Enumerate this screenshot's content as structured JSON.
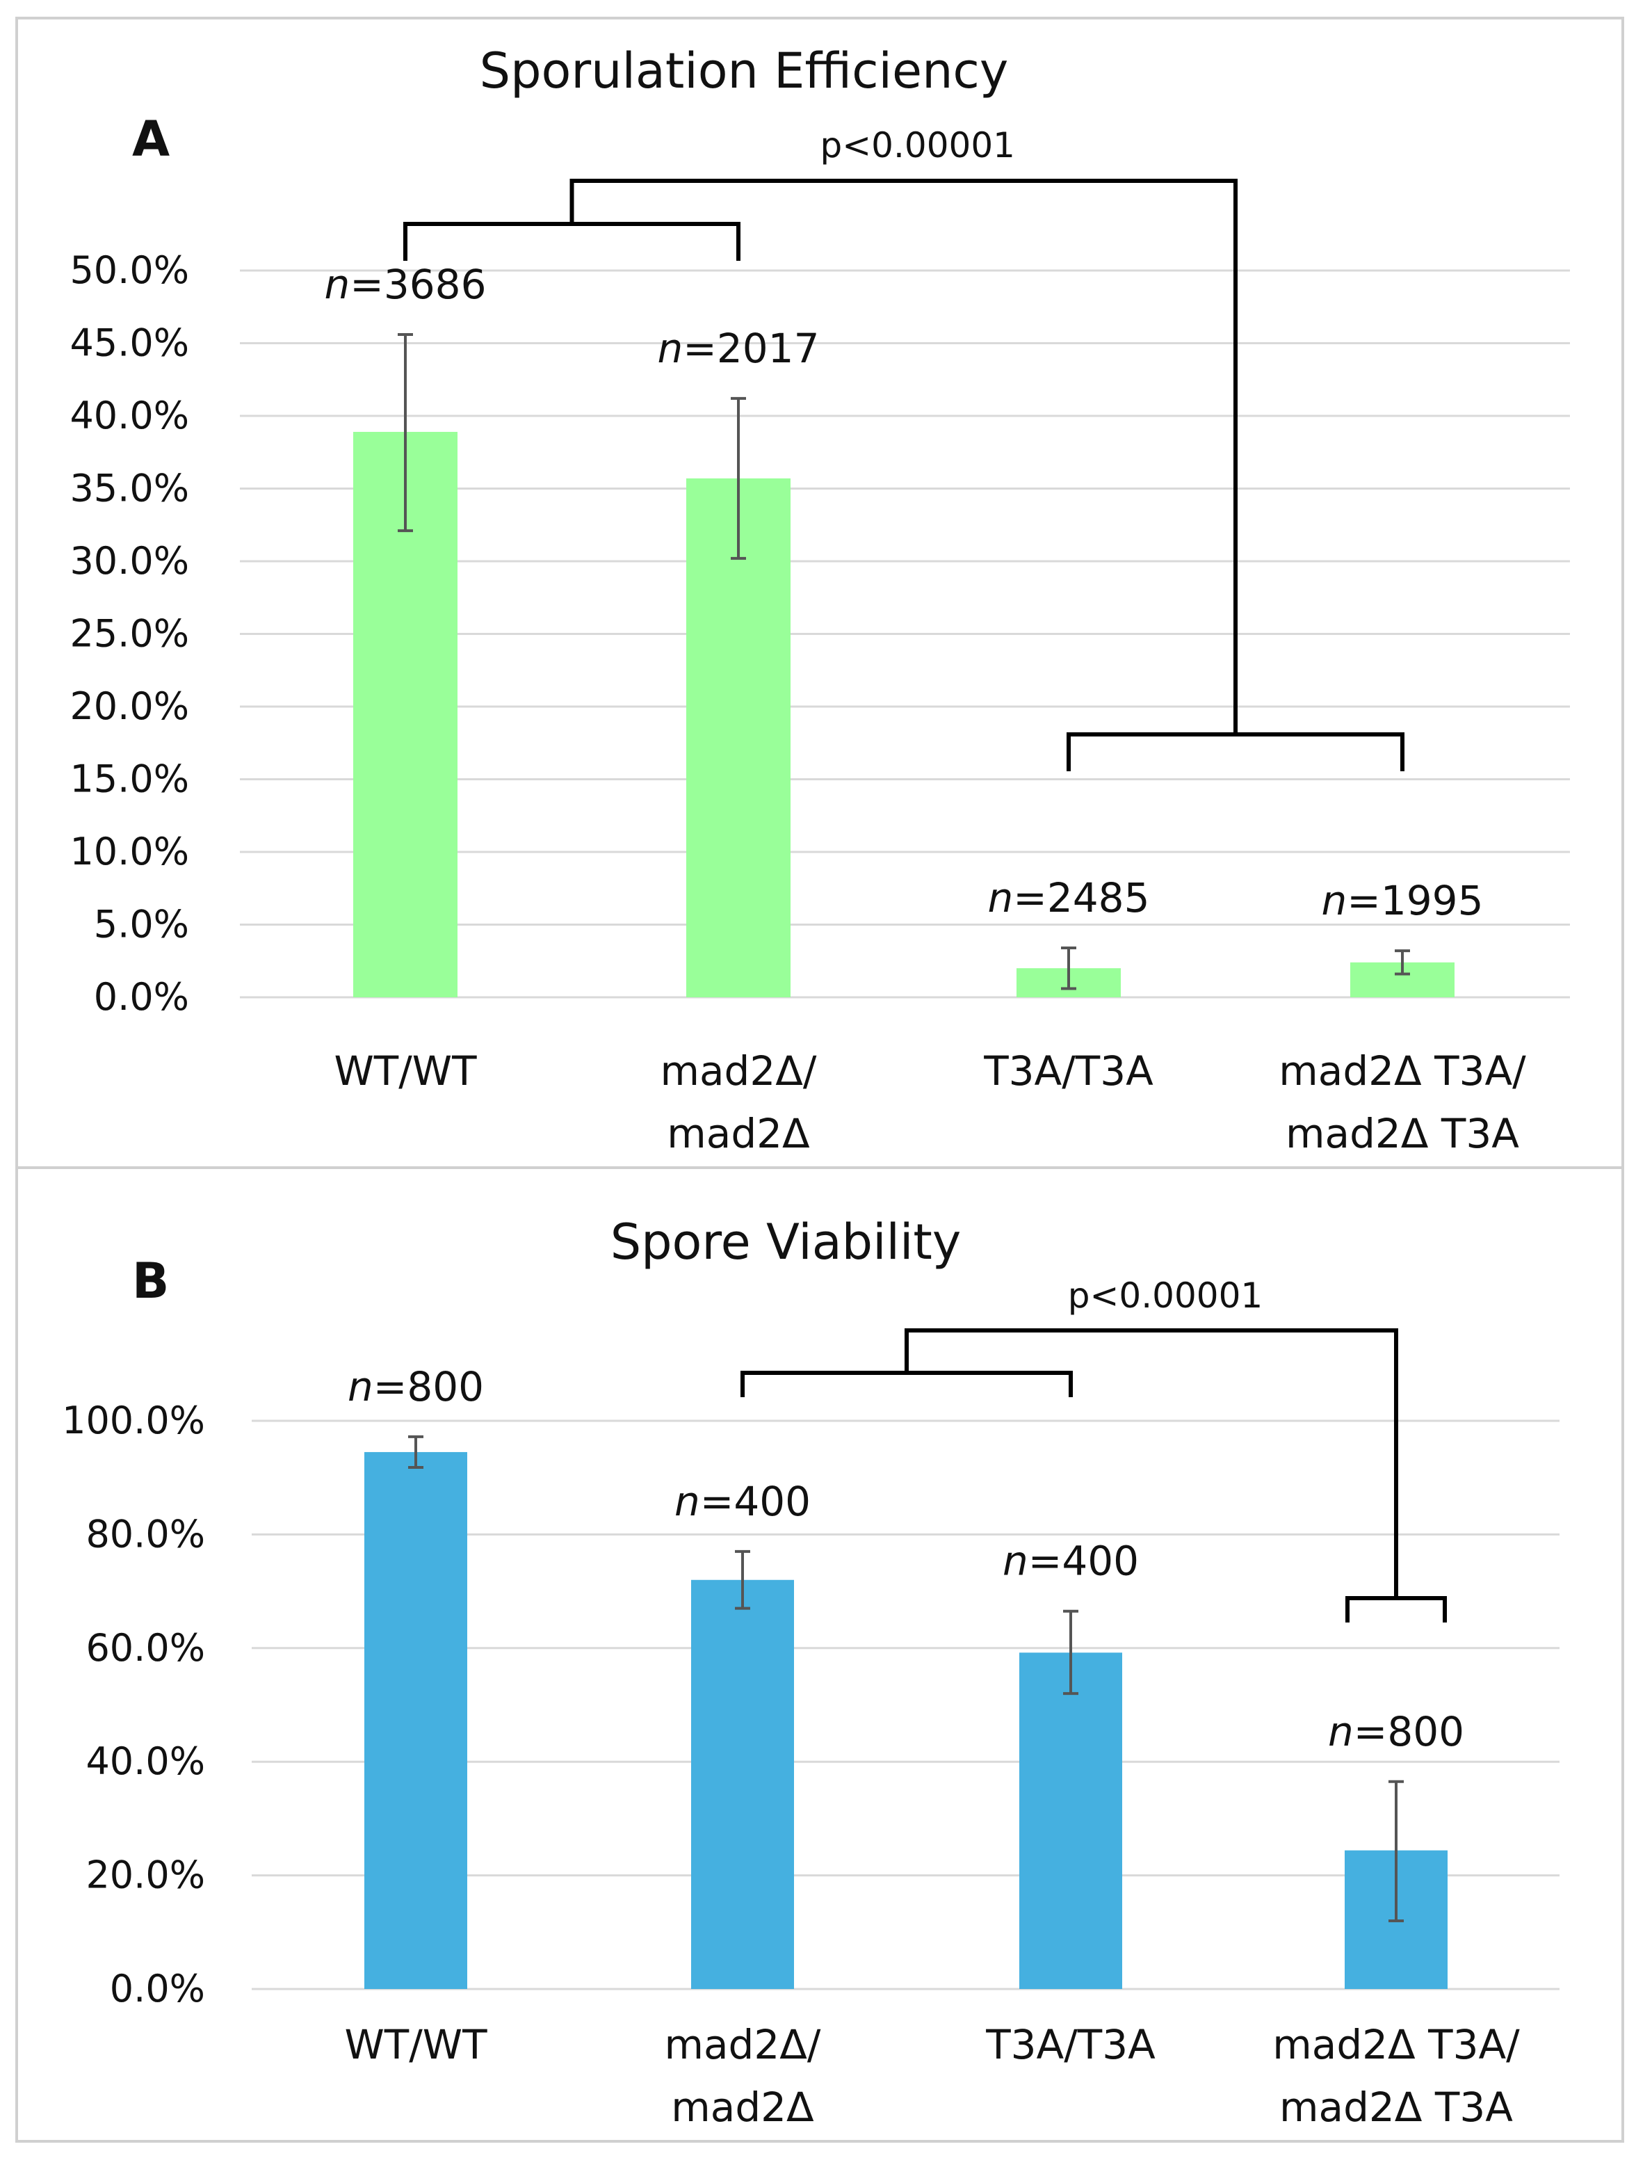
{
  "chart_data": [
    {
      "type": "bar",
      "panel_label": "A",
      "title": "Sporulation Efficiency",
      "categories": [
        [
          "WT/WT"
        ],
        [
          "mad2Δ/",
          "mad2Δ"
        ],
        [
          "T3A/T3A"
        ],
        [
          "mad2Δ T3A/",
          "mad2Δ T3A"
        ]
      ],
      "values": [
        0.389,
        0.357,
        0.02,
        0.024
      ],
      "error_low": [
        0.321,
        0.302,
        0.006,
        0.016
      ],
      "error_high": [
        0.456,
        0.412,
        0.034,
        0.032
      ],
      "n_labels": [
        "3686",
        "2017",
        "2485",
        "1995"
      ],
      "n_prefix": "n",
      "yticks": [
        "0.0%",
        "5.0%",
        "10.0%",
        "15.0%",
        "20.0%",
        "25.0%",
        "30.0%",
        "35.0%",
        "40.0%",
        "45.0%",
        "50.0%"
      ],
      "ylim": [
        0,
        0.5
      ],
      "grid": true,
      "color": "#99ff99",
      "significance": {
        "label": "p<0.00001",
        "group_left": [
          0,
          1
        ],
        "group_right": [
          2,
          3
        ]
      }
    },
    {
      "type": "bar",
      "panel_label": "B",
      "title": "Spore Viability",
      "categories": [
        [
          "WT/WT"
        ],
        [
          "mad2Δ/",
          "mad2Δ"
        ],
        [
          "T3A/T3A"
        ],
        [
          "mad2Δ T3A/",
          "mad2Δ T3A"
        ]
      ],
      "values": [
        0.945,
        0.72,
        0.592,
        0.244
      ],
      "error_low": [
        0.918,
        0.67,
        0.52,
        0.12
      ],
      "error_high": [
        0.972,
        0.77,
        0.665,
        0.365
      ],
      "n_labels": [
        "800",
        "400",
        "400",
        "800"
      ],
      "n_prefix": "n",
      "yticks": [
        "0.0%",
        "20.0%",
        "40.0%",
        "60.0%",
        "80.0%",
        "100.0%"
      ],
      "ylim": [
        0,
        1
      ],
      "grid": true,
      "color": "#45b0e0",
      "significance": {
        "label": "p<0.00001",
        "group_left": [
          1,
          2
        ],
        "group_right": [
          3
        ]
      }
    }
  ]
}
